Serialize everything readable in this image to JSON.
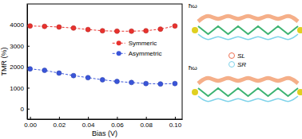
{
  "chart_data": {
    "type": "line",
    "x_label": "Bias (V)",
    "y_label": "TMR (%)",
    "x": [
      0.0,
      0.01,
      0.02,
      0.03,
      0.04,
      0.05,
      0.06,
      0.07,
      0.08,
      0.09,
      0.1
    ],
    "series": [
      {
        "name": "Symmeric",
        "color": "#e8322e",
        "marker": "circle",
        "line_style": "dashed",
        "values": [
          3950,
          3930,
          3900,
          3850,
          3780,
          3720,
          3700,
          3700,
          3720,
          3800,
          3950
        ]
      },
      {
        "name": "Asymmetric",
        "color": "#3a55d9",
        "marker": "circle",
        "line_style": "dashed",
        "values": [
          1900,
          1830,
          1700,
          1580,
          1480,
          1380,
          1300,
          1250,
          1200,
          1180,
          1200
        ]
      }
    ],
    "xlim": [
      -0.002,
      0.105
    ],
    "xticks": [
      {
        "value": 0,
        "label": "0.00"
      },
      {
        "value": 0.02,
        "label": "0.02"
      },
      {
        "value": 0.04,
        "label": "0.04"
      },
      {
        "value": 0.06,
        "label": "0.06"
      },
      {
        "value": 0.08,
        "label": "0.08"
      },
      {
        "value": 0.1,
        "label": "0.10"
      }
    ],
    "ylim": [
      -500,
      5000
    ],
    "yticks": [
      0,
      1000,
      2000,
      3000,
      4000
    ],
    "legend": "right",
    "grid": false,
    "annotations": [
      "ħω",
      "ħω",
      "SL",
      "SR"
    ]
  }
}
